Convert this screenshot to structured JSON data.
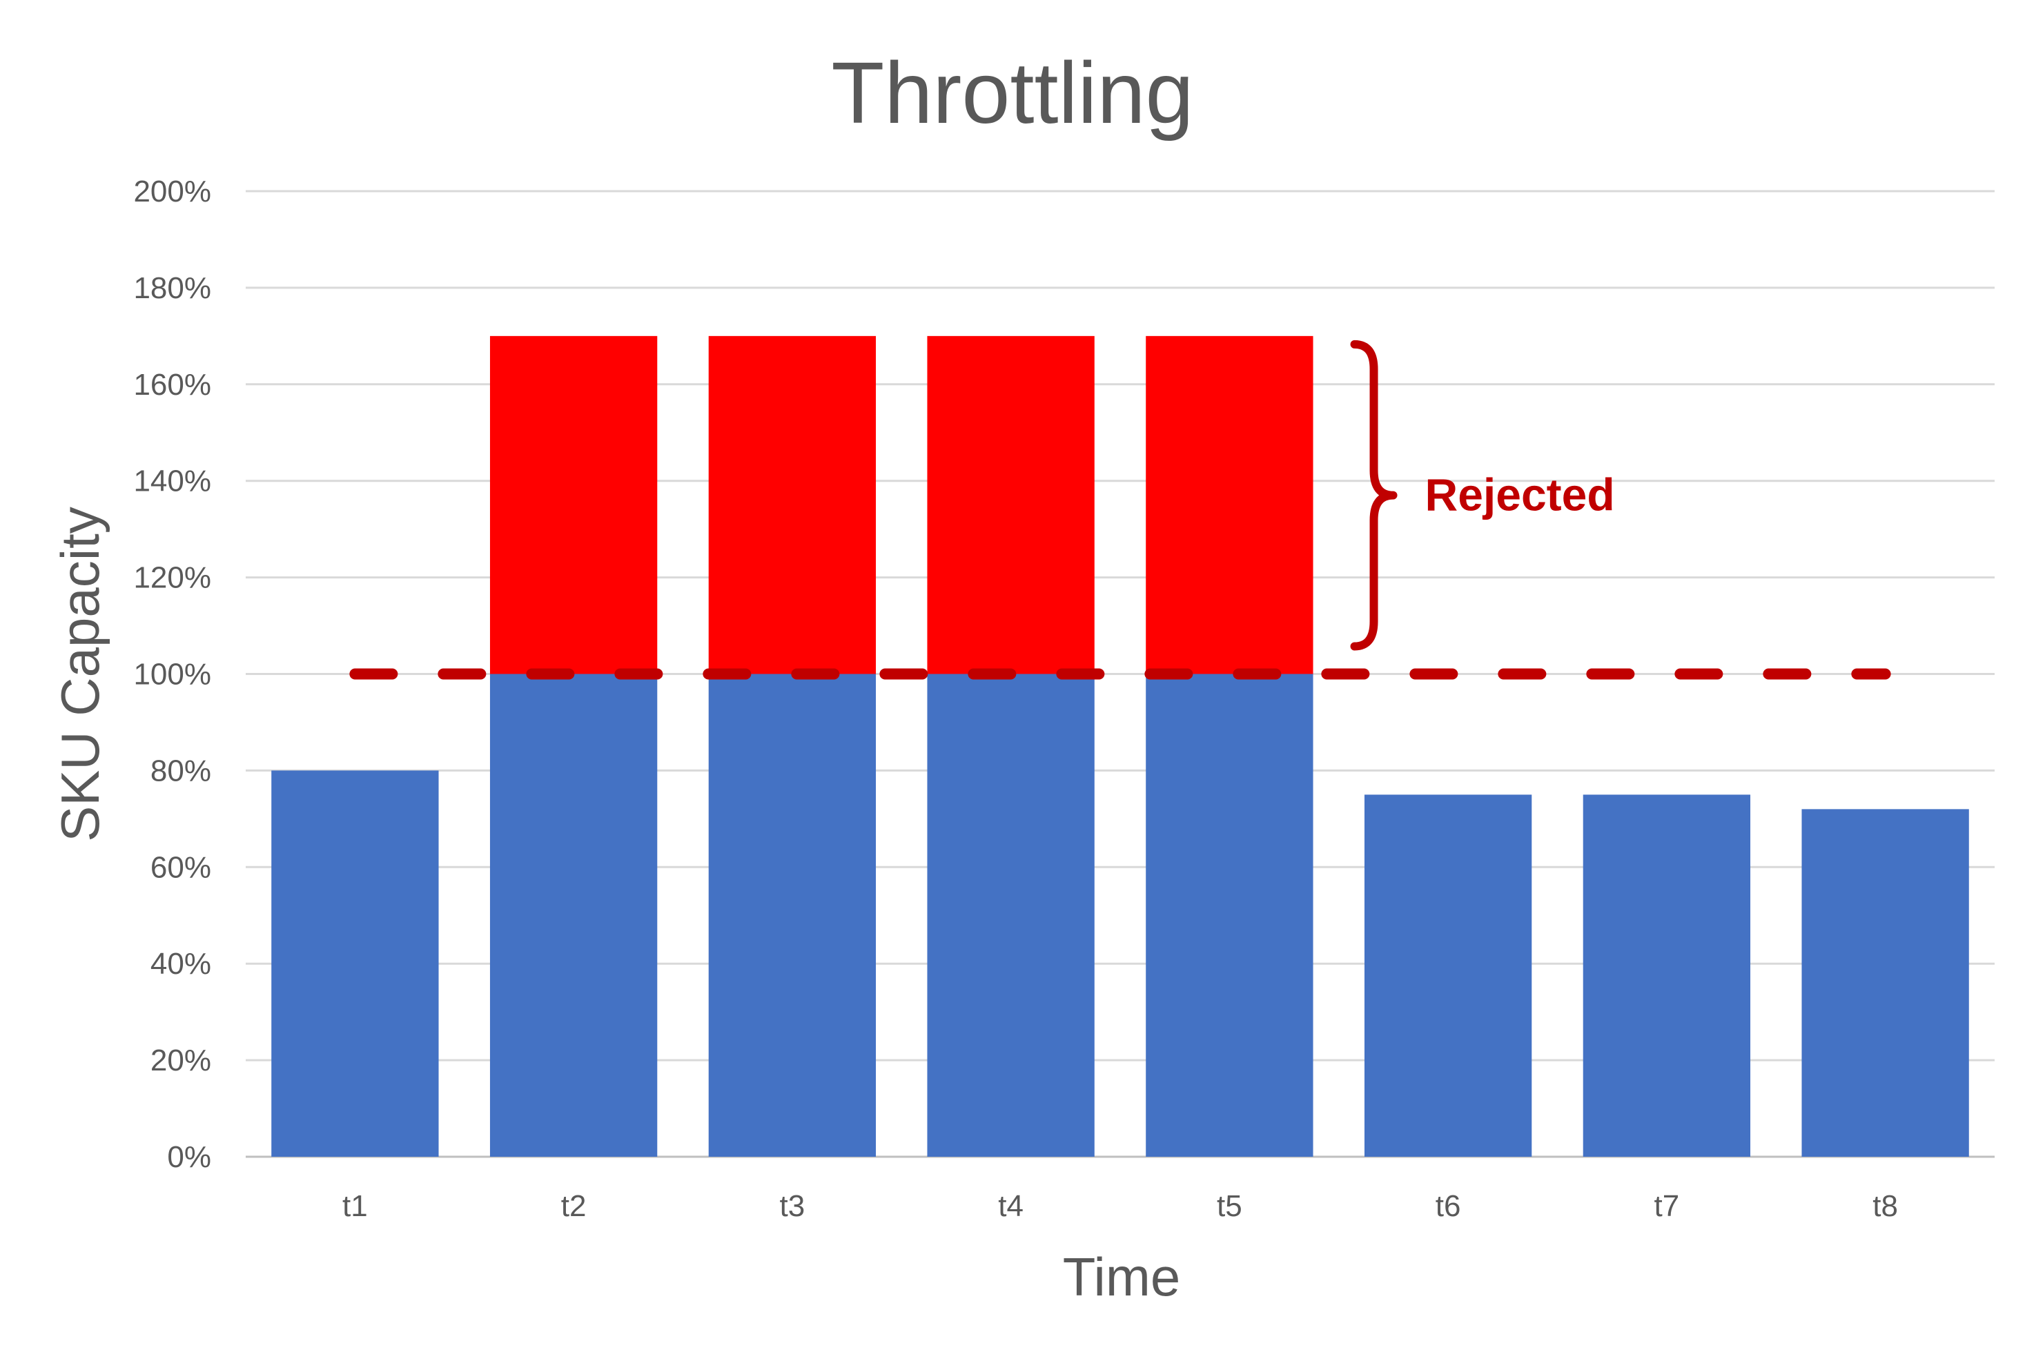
{
  "chart_data": {
    "type": "bar",
    "stacked": true,
    "title": "Throttling",
    "xlabel": "Time",
    "ylabel": "SKU Capacity",
    "categories": [
      "t1",
      "t2",
      "t3",
      "t4",
      "t5",
      "t6",
      "t7",
      "t8"
    ],
    "series": [
      {
        "values": [
          80,
          100,
          100,
          100,
          100,
          75,
          75,
          72
        ],
        "color": "#4472c4"
      },
      {
        "values": [
          0,
          70,
          70,
          70,
          70,
          0,
          0,
          0
        ],
        "color": "#ff0000"
      }
    ],
    "ylim": [
      0,
      200
    ],
    "yticks": [
      0,
      20,
      40,
      60,
      80,
      100,
      120,
      140,
      160,
      180,
      200
    ],
    "ytick_suffix": "%",
    "grid": true,
    "legend": "none",
    "threshold": {
      "value": 100,
      "style": "dashed",
      "color": "#c00000",
      "from_category": "t1",
      "to_category": "t8"
    },
    "annotation": {
      "text": "Rejected",
      "color": "#c00000",
      "from_value": 100,
      "to_value": 170,
      "category": "t5"
    }
  }
}
